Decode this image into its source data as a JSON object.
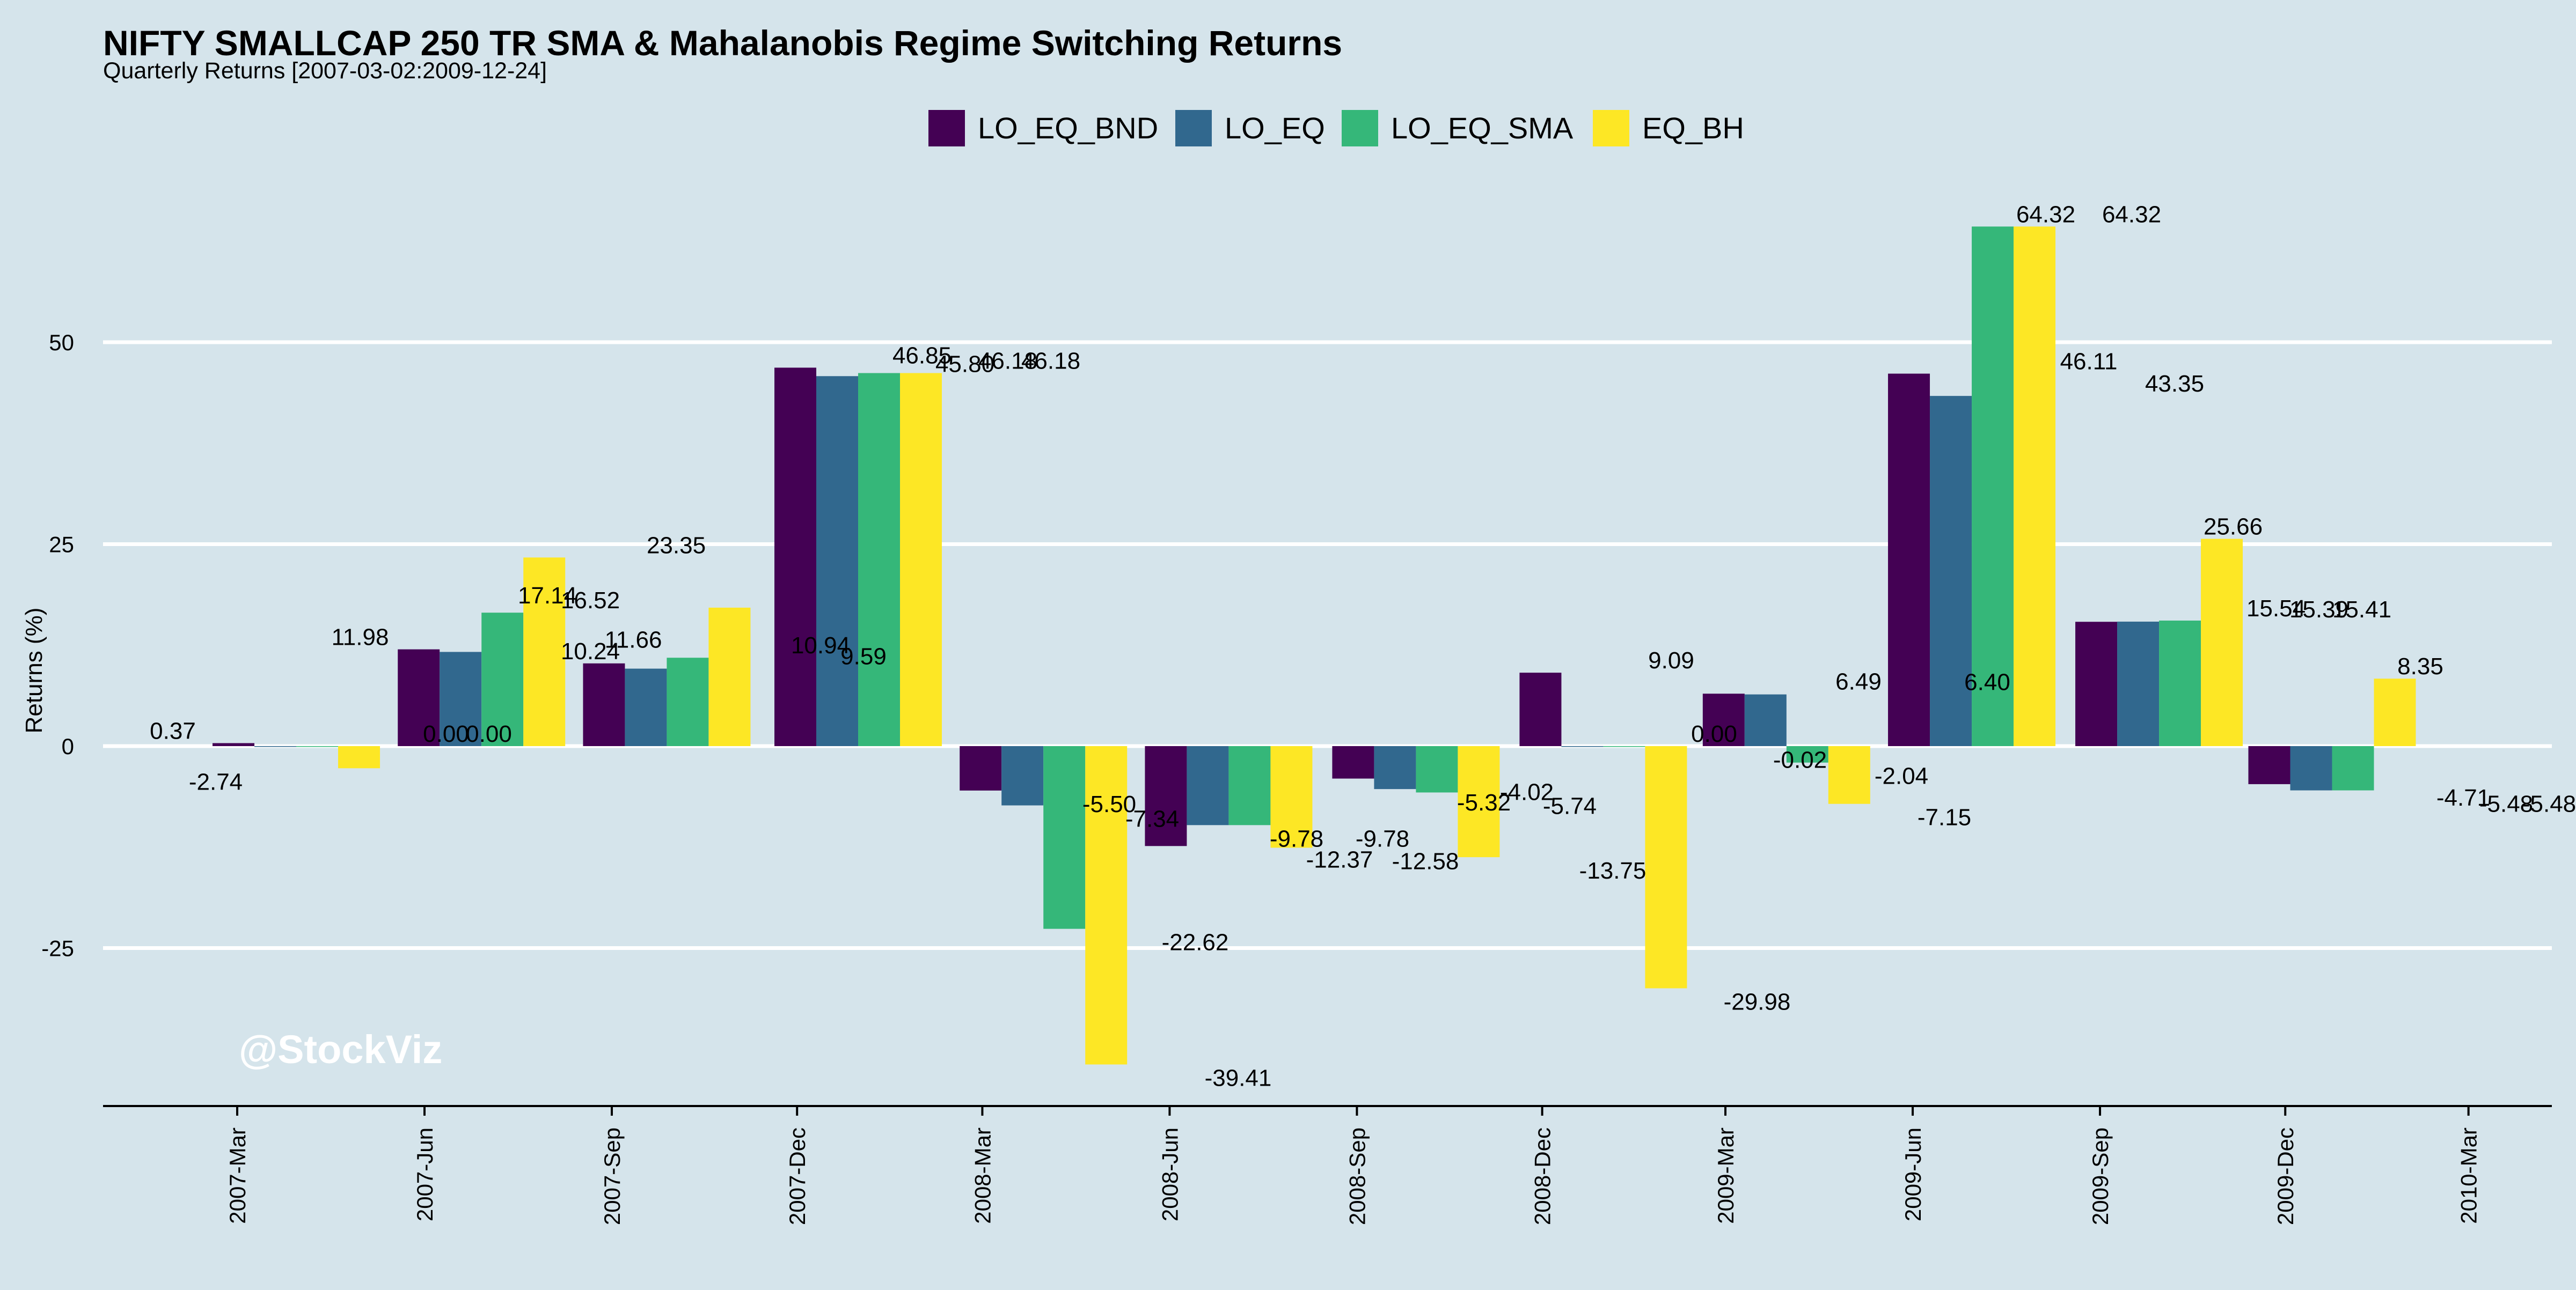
{
  "chart_data": {
    "type": "bar",
    "title": "NIFTY SMALLCAP 250 TR SMA & Mahalanobis Regime Switching Returns",
    "subtitle": "Quarterly Returns [2007-03-02:2009-12-24]",
    "ylabel": "Returns (%)",
    "xlabel": "",
    "ylim": [
      -45,
      68
    ],
    "yticks": [
      50,
      25,
      0,
      -25
    ],
    "grid": true,
    "legend_position": "top-center",
    "x_dates": [
      "2007-03-01",
      "2007-06-01",
      "2007-09-01",
      "2007-12-01",
      "2008-03-01",
      "2008-06-01",
      "2008-09-01",
      "2008-12-01",
      "2009-03-01",
      "2009-06-01",
      "2009-09-01",
      "2009-12-01",
      "2010-03-01"
    ],
    "x_tick_labels": [
      "2007-Mar",
      "2007-Jun",
      "2007-Sep",
      "2007-Dec",
      "2008-Mar",
      "2008-Jun",
      "2008-Sep",
      "2008-Dec",
      "2009-Mar",
      "2009-Jun",
      "2009-Sep",
      "2009-Dec",
      "2010-Mar"
    ],
    "categories": [
      "2007-03-30",
      "2007-06-29",
      "2007-09-28",
      "2007-12-31",
      "2008-03-31",
      "2008-06-30",
      "2008-09-30",
      "2008-12-31",
      "2009-03-31",
      "2009-06-30",
      "2009-09-30",
      "2009-12-24"
    ],
    "series": [
      {
        "name": "LO_EQ_BND",
        "color": "#440154",
        "values": [
          0.37,
          11.98,
          10.24,
          46.85,
          -5.5,
          -12.37,
          -4.02,
          9.09,
          6.49,
          46.11,
          15.39,
          -4.71
        ]
      },
      {
        "name": "LO_EQ",
        "color": "#31688e",
        "values": [
          0.0,
          11.66,
          9.59,
          45.8,
          -7.34,
          -9.78,
          -5.32,
          0.0,
          6.4,
          43.35,
          15.41,
          -5.48
        ]
      },
      {
        "name": "LO_EQ_SMA",
        "color": "#35b779",
        "values": [
          0.0,
          16.52,
          10.94,
          46.18,
          -22.62,
          -9.78,
          -5.74,
          -0.02,
          -2.04,
          64.32,
          15.54,
          -5.48
        ]
      },
      {
        "name": "EQ_BH",
        "color": "#fde725",
        "values": [
          -2.74,
          23.35,
          17.14,
          46.18,
          -39.41,
          -12.58,
          -13.75,
          -29.98,
          -7.15,
          64.32,
          25.66,
          8.35
        ]
      }
    ],
    "labels": [
      {
        "text": "0.37",
        "x": 0,
        "y": 0.37
      },
      {
        "text": "-2.74",
        "x": 0,
        "y": -2.74
      },
      {
        "text": "0.00",
        "x": 1,
        "y": 0.0
      },
      {
        "text": "0.00",
        "x": 1,
        "y": 0.0
      },
      {
        "text": "11.98",
        "x": 1,
        "y": 11.98
      },
      {
        "text": "16.52",
        "x": 2,
        "y": 16.52
      },
      {
        "text": "11.66",
        "x": 2,
        "y": 11.66
      },
      {
        "text": "23.35",
        "x": 2,
        "y": 23.35
      },
      {
        "text": "17.14",
        "x": 2,
        "y": 17.14
      },
      {
        "text": "10.24",
        "x": 2,
        "y": 10.24
      },
      {
        "text": "10.94",
        "x": 3,
        "y": 10.94
      },
      {
        "text": "9.59",
        "x": 3,
        "y": 9.59
      },
      {
        "text": "46.85",
        "x": 4,
        "y": 46.85
      },
      {
        "text": "45.80",
        "x": 4,
        "y": 45.8
      },
      {
        "text": "46.18",
        "x": 4,
        "y": 46.18
      },
      {
        "text": "46.18",
        "x": 4,
        "y": 46.18
      },
      {
        "text": "-5.50",
        "x": 5,
        "y": -5.5
      },
      {
        "text": "-7.34",
        "x": 5,
        "y": -7.34
      },
      {
        "text": "-22.62",
        "x": 5,
        "y": -22.62
      },
      {
        "text": "-39.41",
        "x": 5,
        "y": -39.41
      },
      {
        "text": "-9.78",
        "x": 6,
        "y": -9.78
      },
      {
        "text": "-12.37",
        "x": 6,
        "y": -12.37
      },
      {
        "text": "-9.78",
        "x": 6,
        "y": -9.78
      },
      {
        "text": "-12.58",
        "x": 6,
        "y": -12.58
      },
      {
        "text": "-5.32",
        "x": 7,
        "y": -5.32
      },
      {
        "text": "-4.02",
        "x": 7,
        "y": -4.02
      },
      {
        "text": "-5.74",
        "x": 7,
        "y": -5.74
      },
      {
        "text": "-13.75",
        "x": 7,
        "y": -13.75
      },
      {
        "text": "9.09",
        "x": 8,
        "y": 9.09
      },
      {
        "text": "0.00",
        "x": 8,
        "y": 0.0
      },
      {
        "text": "-29.98",
        "x": 8,
        "y": -29.98
      },
      {
        "text": "-0.02",
        "x": 8,
        "y": -0.02
      },
      {
        "text": "6.49",
        "x": 9,
        "y": 6.49
      },
      {
        "text": "-2.04",
        "x": 9,
        "y": -2.04
      },
      {
        "text": "-7.15",
        "x": 9,
        "y": -7.15
      },
      {
        "text": "6.40",
        "x": 9,
        "y": 6.4
      },
      {
        "text": "64.32",
        "x": 10,
        "y": 64.32
      },
      {
        "text": "46.11",
        "x": 10,
        "y": 46.11
      },
      {
        "text": "64.32",
        "x": 10,
        "y": 64.32
      },
      {
        "text": "43.35",
        "x": 10,
        "y": 43.35
      },
      {
        "text": "25.66",
        "x": 11,
        "y": 25.66
      },
      {
        "text": "15.54",
        "x": 11,
        "y": 15.54
      },
      {
        "text": "15.39",
        "x": 11,
        "y": 15.39
      },
      {
        "text": "15.41",
        "x": 11,
        "y": 15.41
      },
      {
        "text": "8.35",
        "x": 12,
        "y": 8.35
      },
      {
        "text": "-4.71",
        "x": 12,
        "y": -4.71
      },
      {
        "text": "-5.48",
        "x": 12,
        "y": -5.48
      },
      {
        "text": "-5.48",
        "x": 12,
        "y": -5.48
      }
    ],
    "watermark": "@StockViz"
  }
}
